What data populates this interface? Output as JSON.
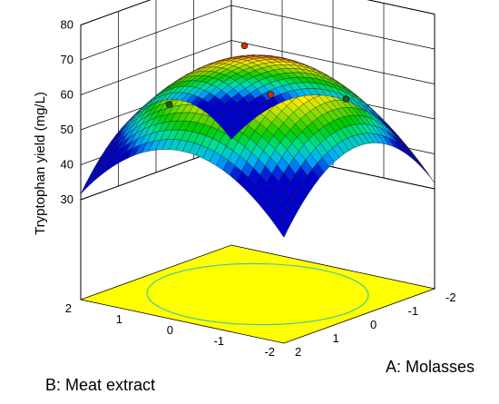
{
  "chart_data": {
    "type": "surface",
    "title": "",
    "xlabel": "A: Molasses",
    "ylabel": "B: Meat extract",
    "zlabel": "Tryptophan yield (mg/L)",
    "xlim": [
      -2,
      2
    ],
    "ylim": [
      -2,
      2
    ],
    "zlim": [
      30,
      80
    ],
    "x_ticks": [
      "-2",
      "-1",
      "0",
      "1",
      "2"
    ],
    "y_ticks": [
      "-2",
      "-1",
      "0",
      "1",
      "2"
    ],
    "z_ticks": [
      "30",
      "40",
      "50",
      "60",
      "70",
      "80"
    ],
    "surface_model": {
      "form": "quadratic",
      "intercept": 68.5,
      "a": 0.0,
      "b": 0.0,
      "ab": 0.0,
      "a2": -4.6,
      "b2": -4.6
    },
    "design_points": [
      {
        "x": -1,
        "y": 1,
        "z": 65.5
      },
      {
        "x": 1,
        "y": -1,
        "z": 65.5
      },
      {
        "x": -1,
        "y": -1,
        "z": 56.5
      },
      {
        "x": 1,
        "y": 1,
        "z": 56.5
      }
    ],
    "floor_contour_color": "#ffff00",
    "colormap": [
      "#0000cc",
      "#00aaff",
      "#00e0a0",
      "#00cc00",
      "#88dd00",
      "#ffee00",
      "#ff8800",
      "#dd0000"
    ]
  }
}
